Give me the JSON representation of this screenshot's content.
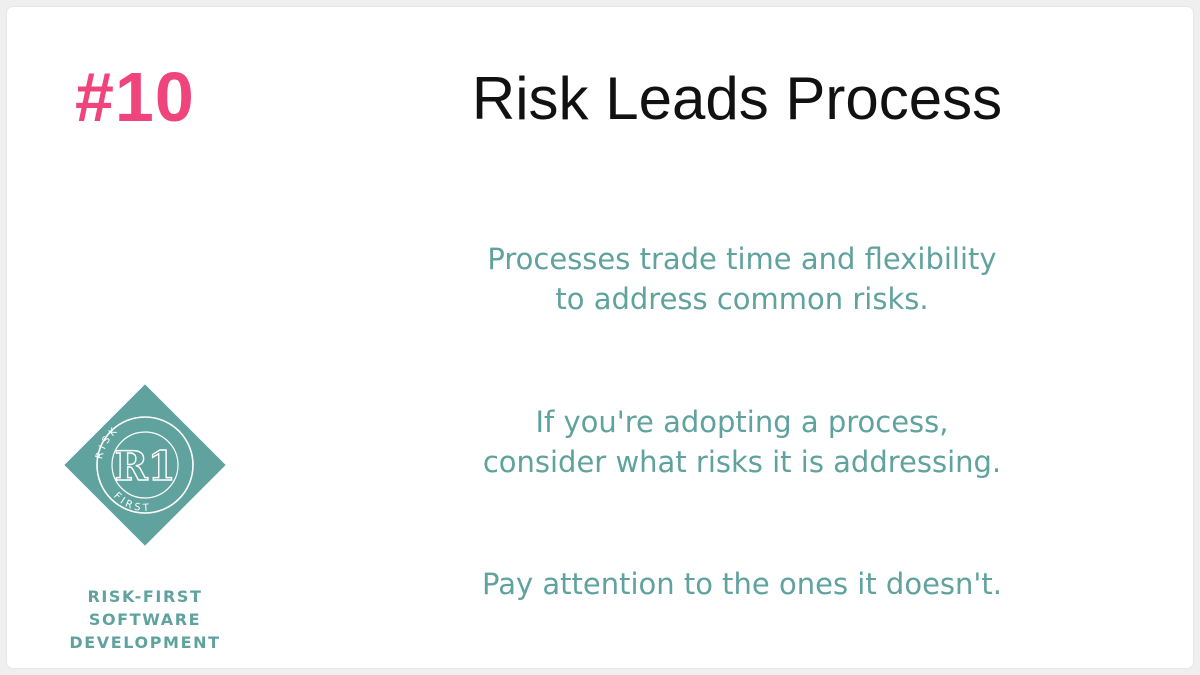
{
  "tip_number": "#10",
  "title": "Risk Leads Process",
  "paragraphs": [
    {
      "line1": "Processes trade time and flexibility",
      "line2": "to address common risks."
    },
    {
      "line1": "If you're adopting a process,",
      "line2": "consider what risks it is addressing."
    },
    {
      "line1": "Pay attention to the ones it doesn't."
    }
  ],
  "logo": {
    "name": "Risk-First logo",
    "mark": "R1",
    "ring_text_top": "RISK",
    "ring_text_bottom": "FIRST",
    "color": "#5fa29e"
  },
  "brand": {
    "line1": "RISK-FIRST",
    "line2": "SOFTWARE",
    "line3": "DEVELOPMENT"
  },
  "colors": {
    "accent_pink": "#f0457c",
    "teal": "#5fa29e",
    "title": "#111111"
  }
}
